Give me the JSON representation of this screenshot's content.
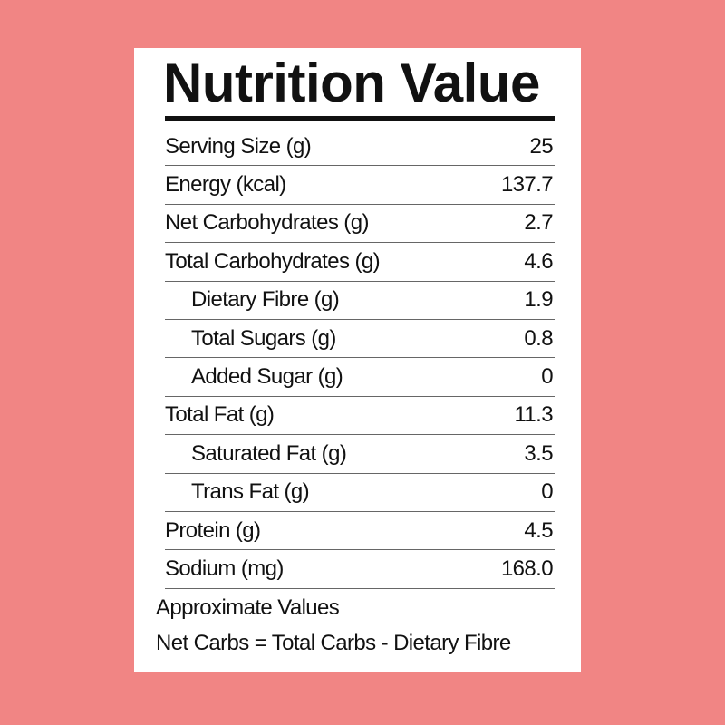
{
  "title": "Nutrition Value",
  "rows": [
    {
      "label": "Serving Size (g)",
      "value": "25",
      "indent": false
    },
    {
      "label": "Energy (kcal)",
      "value": "137.7",
      "indent": false
    },
    {
      "label": "Net Carbohydrates (g)",
      "value": "2.7",
      "indent": false
    },
    {
      "label": "Total Carbohydrates (g)",
      "value": "4.6",
      "indent": false
    },
    {
      "label": "Dietary Fibre (g)",
      "value": "1.9",
      "indent": true
    },
    {
      "label": "Total Sugars (g)",
      "value": "0.8",
      "indent": true
    },
    {
      "label": "Added Sugar (g)",
      "value": "0",
      "indent": true
    },
    {
      "label": "Total Fat (g)",
      "value": "11.3",
      "indent": false
    },
    {
      "label": "Saturated Fat (g)",
      "value": "3.5",
      "indent": true
    },
    {
      "label": "Trans Fat (g)",
      "value": "0",
      "indent": true
    },
    {
      "label": "Protein (g)",
      "value": "4.5",
      "indent": false
    },
    {
      "label": "Sodium (mg)",
      "value": "168.0",
      "indent": false
    }
  ],
  "footer": {
    "note": "Approximate Values",
    "formula": "Net Carbs = Total Carbs - Dietary Fibre"
  },
  "colors": {
    "background": "#f18584",
    "card": "#ffffff",
    "text": "#111111"
  }
}
